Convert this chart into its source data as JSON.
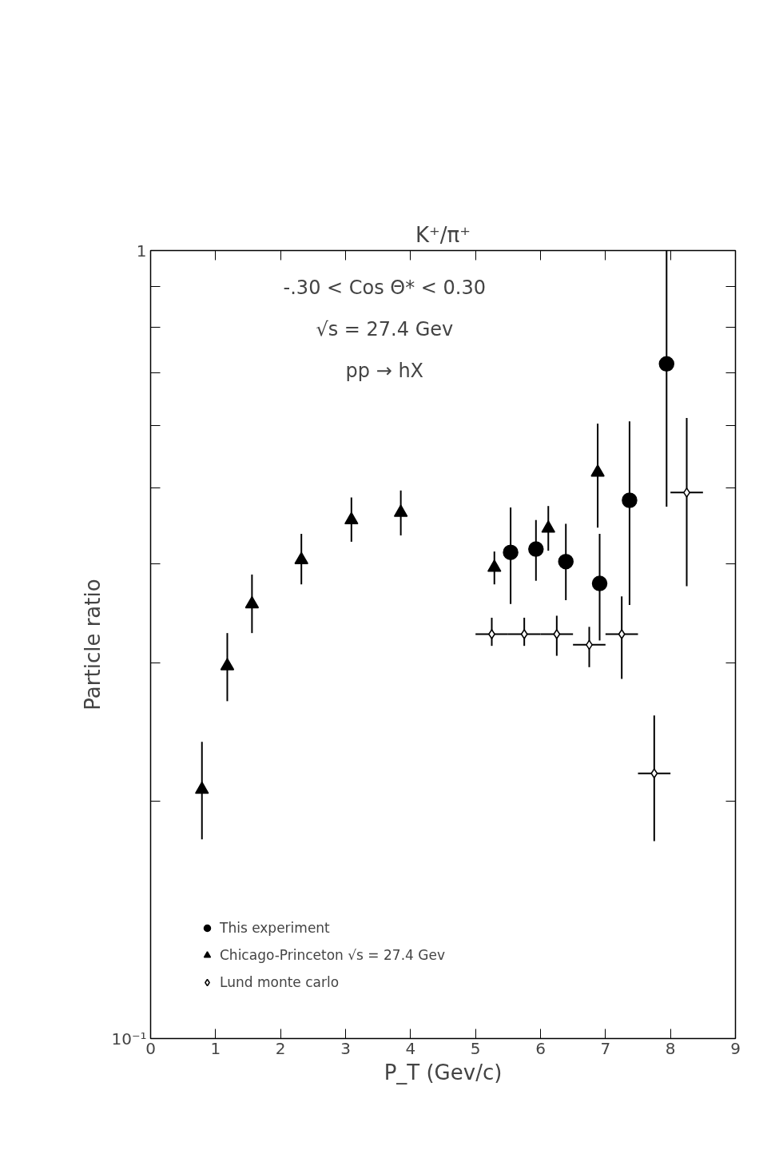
{
  "chart_data": {
    "type": "scatter",
    "title": "K⁺/π⁺",
    "xlabel": "P_T (Gev/c)",
    "ylabel": "Particle ratio",
    "annotations": [
      "-.30 < Cos Θ* < 0.30",
      "√s = 27.4 Gev",
      "pp → hX"
    ],
    "log": "y",
    "xlim": [
      0,
      9
    ],
    "ylim": [
      0.1,
      1
    ],
    "xticks": [
      0,
      1,
      2,
      3,
      4,
      5,
      6,
      7,
      8,
      9
    ],
    "yticks": [
      {
        "value": 0.1,
        "label": "10⁻¹"
      },
      {
        "value": 0.2,
        "label": null
      },
      {
        "value": 0.3,
        "label": null
      },
      {
        "value": 0.4,
        "label": null
      },
      {
        "value": 0.5,
        "label": null
      },
      {
        "value": 0.6,
        "label": null
      },
      {
        "value": 0.7,
        "label": null
      },
      {
        "value": 0.8,
        "label": null
      },
      {
        "value": 0.9,
        "label": null
      },
      {
        "value": 1,
        "label": "1"
      }
    ],
    "grid": false,
    "legend": "bottom left",
    "series": [
      {
        "name": "This experiment",
        "color": "#000000",
        "marker": "circle",
        "x": [
          5.54,
          5.93,
          6.39,
          6.91,
          7.37,
          7.94
        ],
        "values": [
          0.414,
          0.418,
          0.403,
          0.378,
          0.482,
          0.718
        ],
        "errors": [
          [
            0.356,
            0.472
          ],
          [
            0.381,
            0.455
          ],
          [
            0.36,
            0.45
          ],
          [
            0.32,
            0.437
          ],
          [
            0.355,
            0.607
          ],
          [
            0.473,
            1.0
          ]
        ]
      },
      {
        "name": "Chicago-Princeton √s = 27.4 Gev",
        "color": "#000000",
        "marker": "triangle",
        "x": [
          0.79,
          1.18,
          1.56,
          2.32,
          3.09,
          3.85,
          5.29,
          6.12,
          6.88
        ],
        "values": [
          0.207,
          0.297,
          0.356,
          0.405,
          0.455,
          0.465,
          0.396,
          0.444,
          0.523
        ],
        "errors": [
          [
            0.179,
            0.238
          ],
          [
            0.268,
            0.327
          ],
          [
            0.327,
            0.388
          ],
          [
            0.377,
            0.437
          ],
          [
            0.427,
            0.486
          ],
          [
            0.435,
            0.496
          ],
          [
            0.377,
            0.415
          ],
          [
            0.416,
            0.474
          ],
          [
            0.445,
            0.603
          ]
        ]
      },
      {
        "name": "Lund monte carlo",
        "color": "#000000",
        "marker": "diamond",
        "x": [
          5.25,
          5.75,
          6.25,
          6.75,
          7.25,
          7.75,
          8.25
        ],
        "values": [
          0.326,
          0.326,
          0.326,
          0.316,
          0.326,
          0.217,
          0.493
        ],
        "errors": [
          [
            0.315,
            0.342
          ],
          [
            0.315,
            0.342
          ],
          [
            0.306,
            0.344
          ],
          [
            0.296,
            0.333
          ],
          [
            0.286,
            0.364
          ],
          [
            0.178,
            0.257
          ],
          [
            0.375,
            0.613
          ]
        ],
        "xerrors": [
          0.25,
          0.25,
          0.25,
          0.25,
          0.25,
          0.25,
          0.25
        ]
      }
    ]
  }
}
